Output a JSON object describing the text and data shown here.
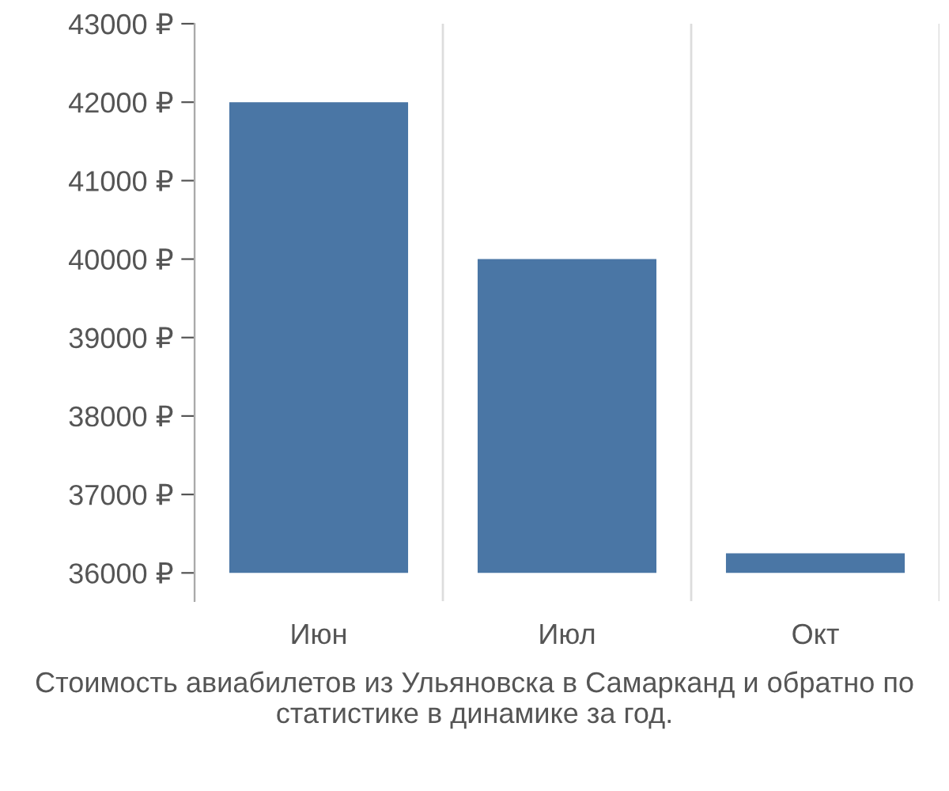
{
  "chart_data": {
    "type": "bar",
    "categories": [
      "Июн",
      "Июл",
      "Окт"
    ],
    "values": [
      6000,
      4000,
      250
    ],
    "base": [
      36000,
      36000,
      36000
    ],
    "color": "#4a76a5",
    "ylim": [
      35640,
      43000
    ],
    "yticks": [
      {
        "value": 36000,
        "label": "36000 ₽"
      },
      {
        "value": 37000,
        "label": "37000 ₽"
      },
      {
        "value": 38000,
        "label": "38000 ₽"
      },
      {
        "value": 39000,
        "label": "39000 ₽"
      },
      {
        "value": 40000,
        "label": "40000 ₽"
      },
      {
        "value": 41000,
        "label": "41000 ₽"
      },
      {
        "value": 42000,
        "label": "42000 ₽"
      },
      {
        "value": 43000,
        "label": "43000 ₽"
      }
    ],
    "grid": "x",
    "annotations": [
      "Стоимость авиабилетов из Ульяновска в Самарканд и обратно по статистике в динамике за год."
    ]
  }
}
